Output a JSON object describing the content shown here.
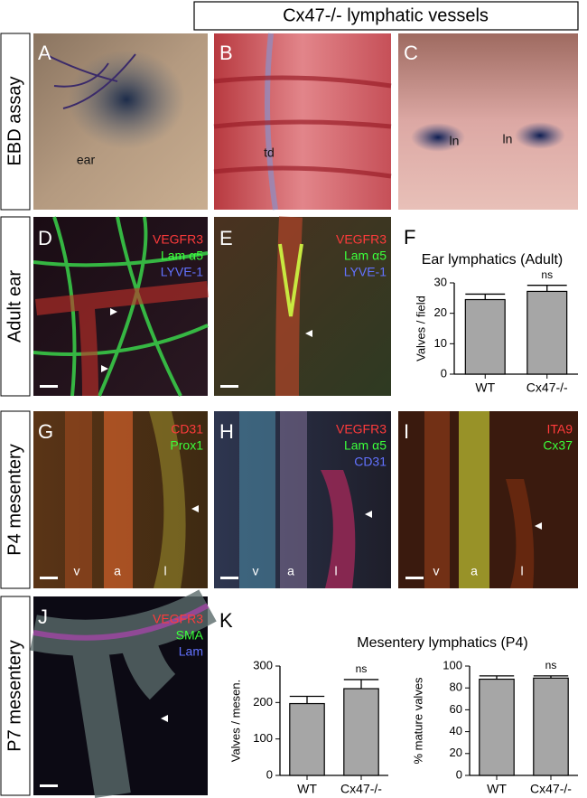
{
  "title": "Cx47-/- lymphatic vessels",
  "row_labels": [
    "EBD assay",
    "Adult ear",
    "P4 mesentery",
    "P7 mesentery"
  ],
  "panels": [
    {
      "letter": "A",
      "labels": [
        "ear"
      ]
    },
    {
      "letter": "B",
      "labels": [
        "td"
      ]
    },
    {
      "letter": "C",
      "labels": [
        "ln",
        "ln"
      ]
    },
    {
      "letter": "D",
      "stains": [
        {
          "text": "VEGFR3",
          "color": "#ff3b3b"
        },
        {
          "text": "Lam α5",
          "color": "#3bff3b"
        },
        {
          "text": "LYVE-1",
          "color": "#6272ff"
        }
      ]
    },
    {
      "letter": "E",
      "stains": [
        {
          "text": "VEGFR3",
          "color": "#ff3b3b"
        },
        {
          "text": "Lam α5",
          "color": "#3bff3b"
        },
        {
          "text": "LYVE-1",
          "color": "#6272ff"
        }
      ]
    },
    {
      "letter": "F"
    },
    {
      "letter": "G",
      "stains": [
        {
          "text": "CD31",
          "color": "#ff3b3b"
        },
        {
          "text": "Prox1",
          "color": "#3bff3b"
        }
      ],
      "labels": [
        "v",
        "a",
        "l"
      ]
    },
    {
      "letter": "H",
      "stains": [
        {
          "text": "VEGFR3",
          "color": "#ff3b3b"
        },
        {
          "text": "Lam α5",
          "color": "#3bff3b"
        },
        {
          "text": "CD31",
          "color": "#6272ff"
        }
      ],
      "labels": [
        "v",
        "a",
        "l"
      ]
    },
    {
      "letter": "I",
      "stains": [
        {
          "text": "ITA9",
          "color": "#ff3b3b"
        },
        {
          "text": "Cx37",
          "color": "#3bff3b"
        }
      ],
      "labels": [
        "v",
        "a",
        "l"
      ]
    },
    {
      "letter": "J",
      "stains": [
        {
          "text": "VEGFR3",
          "color": "#ff3b3b"
        },
        {
          "text": "SMA",
          "color": "#3bff3b"
        },
        {
          "text": "Lam",
          "color": "#6272ff"
        }
      ]
    },
    {
      "letter": "K"
    }
  ],
  "chart_data": [
    {
      "type": "bar",
      "title": "Ear lymphatics (Adult)",
      "y_label": "Valves / field",
      "categories": [
        "WT",
        "Cx47-/-"
      ],
      "values": [
        24.5,
        27.2
      ],
      "errors": [
        1.8,
        2.0
      ],
      "annotation": "ns",
      "color": "#a6a6a6",
      "ylim": [
        0,
        30
      ],
      "yticks": [
        0,
        10,
        20,
        30
      ]
    },
    {
      "type": "bar",
      "title": "Mesentery lymphatics (P4)",
      "y_label": "Valves / mesen.",
      "categories": [
        "WT",
        "Cx47-/-"
      ],
      "values": [
        197,
        238
      ],
      "errors": [
        20,
        25
      ],
      "annotation": "ns",
      "color": "#a6a6a6",
      "ylim": [
        0,
        300
      ],
      "yticks": [
        0,
        100,
        200,
        300
      ]
    },
    {
      "type": "bar",
      "y_label": "% mature valves",
      "categories": [
        "WT",
        "Cx47-/-"
      ],
      "values": [
        88,
        89
      ],
      "errors": [
        3,
        2
      ],
      "annotation": "ns",
      "color": "#a6a6a6",
      "ylim": [
        0,
        100
      ],
      "yticks": [
        0,
        20,
        40,
        60,
        80,
        100
      ]
    }
  ]
}
